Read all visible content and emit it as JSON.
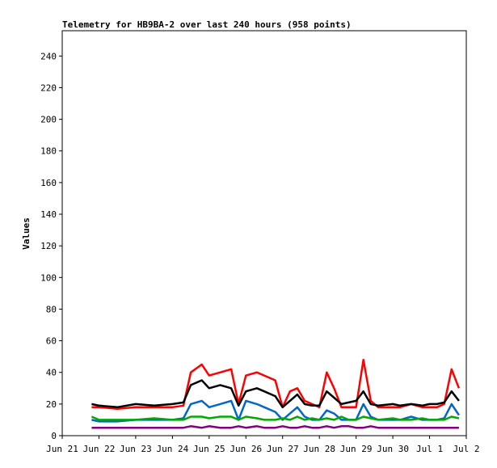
{
  "chart_data": {
    "type": "line",
    "title": "Telemetry for HB9BA-2 over last 240 hours (958 points)",
    "ylabel": "Values",
    "xlabel": "",
    "ylim": [
      0,
      256
    ],
    "xlim": [
      0,
      11
    ],
    "y_ticks": [
      0,
      20,
      40,
      60,
      80,
      100,
      120,
      140,
      160,
      180,
      200,
      220,
      240
    ],
    "x_ticks": [
      {
        "label": "Jun 21",
        "x": 0
      },
      {
        "label": "Jun 22",
        "x": 1
      },
      {
        "label": "Jun 23",
        "x": 2
      },
      {
        "label": "Jun 24",
        "x": 3
      },
      {
        "label": "Jun 25",
        "x": 4
      },
      {
        "label": "Jun 26",
        "x": 5
      },
      {
        "label": "Jun 27",
        "x": 6
      },
      {
        "label": "Jun 28",
        "x": 7
      },
      {
        "label": "Jun 29",
        "x": 8
      },
      {
        "label": "Jun 30",
        "x": 9
      },
      {
        "label": "Jul 1",
        "x": 10
      },
      {
        "label": "Jul 2",
        "x": 11
      }
    ],
    "grid": false,
    "x": [
      0.8,
      1.0,
      1.5,
      2.0,
      2.5,
      3.0,
      3.3,
      3.5,
      3.8,
      4.0,
      4.3,
      4.6,
      4.8,
      5.0,
      5.3,
      5.5,
      5.8,
      6.0,
      6.2,
      6.4,
      6.6,
      6.8,
      7.0,
      7.2,
      7.4,
      7.6,
      7.8,
      8.0,
      8.2,
      8.4,
      8.6,
      9.0,
      9.2,
      9.5,
      9.8,
      10.0,
      10.2,
      10.4,
      10.6,
      10.8
    ],
    "series": [
      {
        "color": "#ff0000",
        "values": [
          18,
          18,
          17,
          18,
          18,
          18,
          19,
          40,
          45,
          38,
          40,
          42,
          20,
          38,
          40,
          38,
          35,
          18,
          28,
          30,
          22,
          20,
          18,
          40,
          30,
          18,
          18,
          18,
          48,
          22,
          18,
          18,
          18,
          20,
          18,
          18,
          18,
          20,
          42,
          30
        ]
      },
      {
        "color": "#000000",
        "values": [
          20,
          19,
          18,
          20,
          19,
          20,
          21,
          32,
          35,
          30,
          32,
          30,
          19,
          28,
          30,
          28,
          25,
          18,
          22,
          26,
          20,
          19,
          19,
          28,
          24,
          20,
          21,
          22,
          28,
          20,
          19,
          20,
          19,
          20,
          19,
          20,
          20,
          21,
          28,
          22
        ]
      },
      {
        "color": "#0066cc",
        "values": [
          10,
          9,
          9,
          10,
          10,
          10,
          11,
          20,
          22,
          18,
          20,
          22,
          10,
          22,
          20,
          18,
          15,
          10,
          14,
          18,
          12,
          10,
          10,
          16,
          14,
          10,
          10,
          10,
          20,
          12,
          10,
          10,
          10,
          12,
          10,
          10,
          10,
          11,
          20,
          13
        ]
      },
      {
        "color": "#00aa00",
        "values": [
          12,
          10,
          10,
          10,
          11,
          10,
          10,
          12,
          12,
          11,
          12,
          12,
          10,
          12,
          11,
          10,
          10,
          11,
          10,
          12,
          10,
          11,
          10,
          11,
          10,
          12,
          10,
          10,
          12,
          11,
          10,
          11,
          10,
          10,
          11,
          10,
          10,
          10,
          12,
          11
        ]
      },
      {
        "color": "#800080",
        "values": [
          5,
          5,
          5,
          5,
          5,
          5,
          5,
          6,
          5,
          6,
          5,
          5,
          6,
          5,
          6,
          5,
          5,
          6,
          5,
          5,
          6,
          5,
          5,
          6,
          5,
          6,
          6,
          5,
          5,
          6,
          5,
          5,
          5,
          5,
          5,
          5,
          5,
          5,
          5,
          5
        ]
      }
    ]
  }
}
